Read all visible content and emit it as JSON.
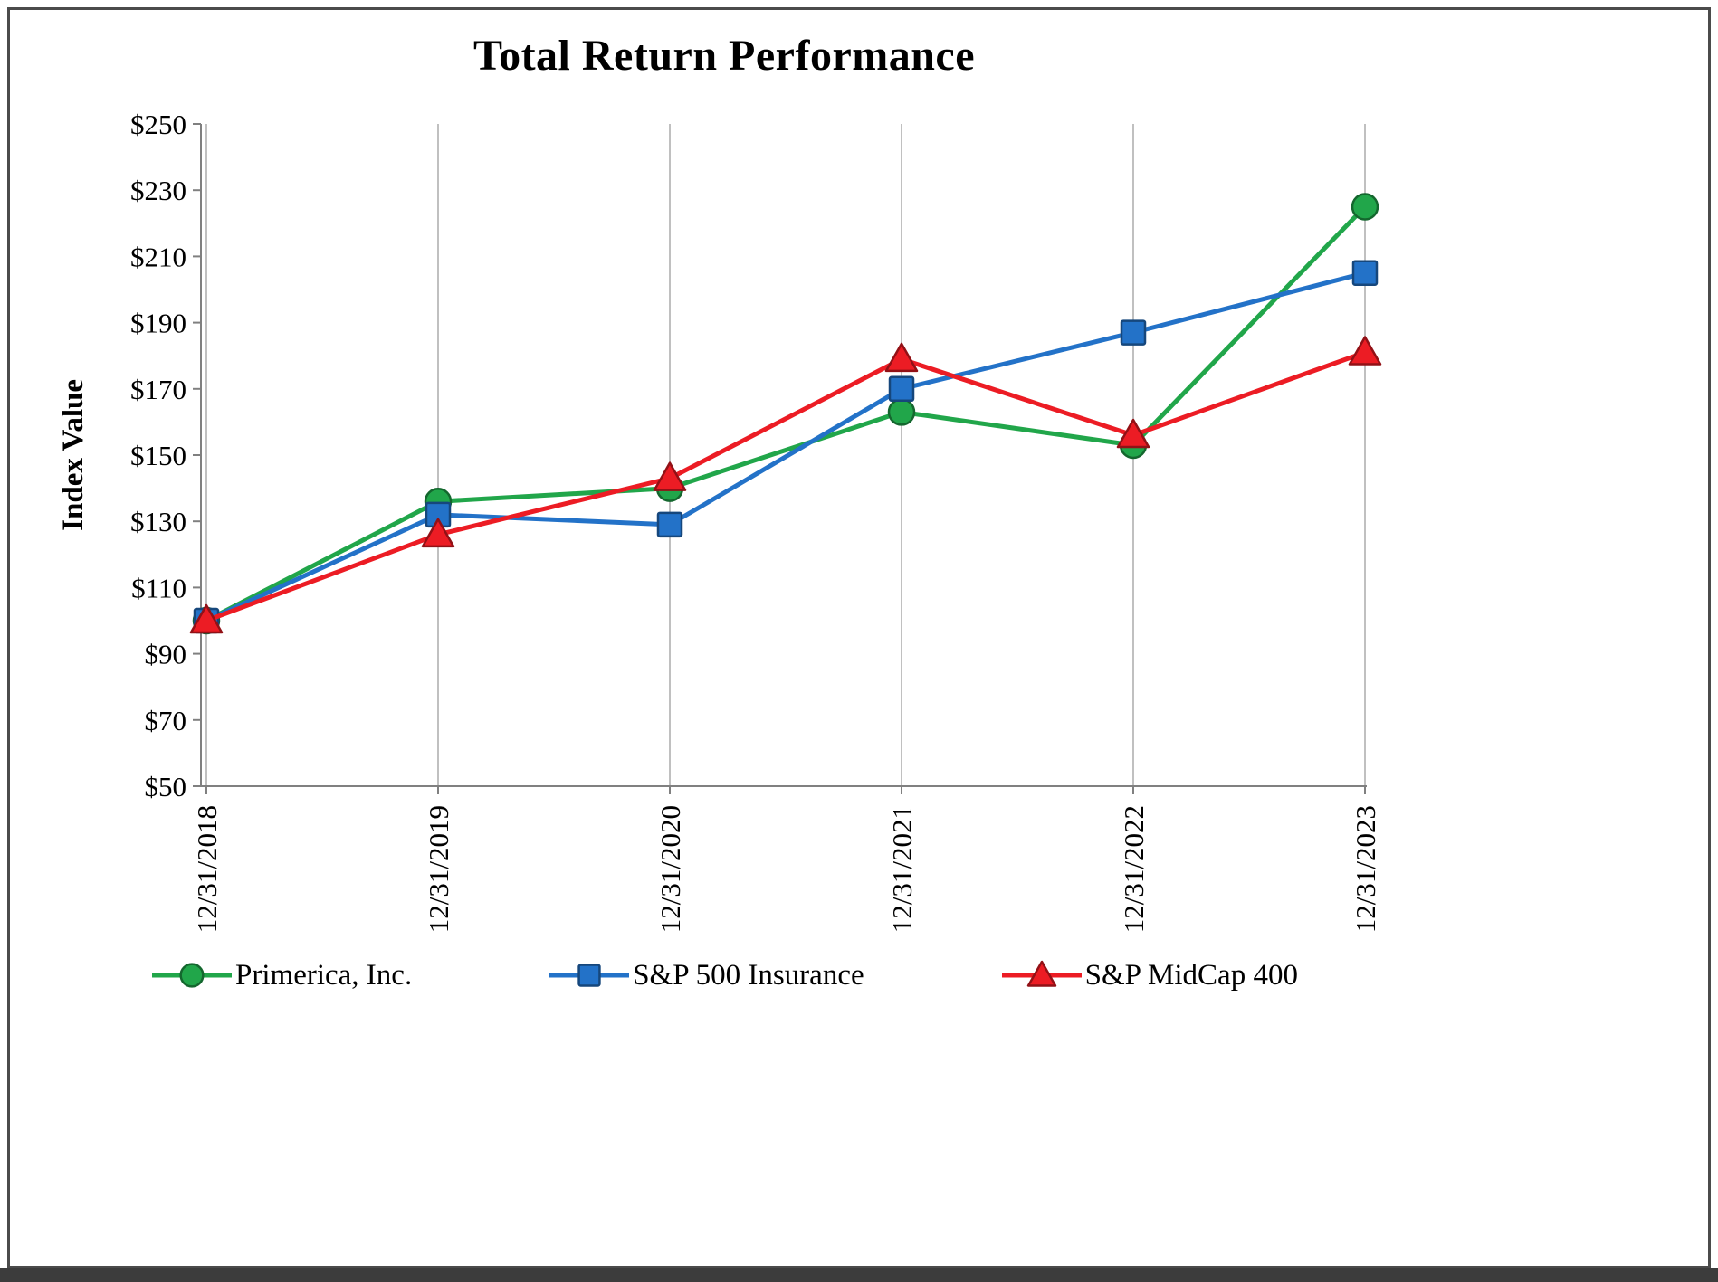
{
  "chart_data": {
    "type": "line",
    "title": "Total Return Performance",
    "xlabel": "",
    "ylabel": "Index Value",
    "categories": [
      "12/31/2018",
      "12/31/2019",
      "12/31/2020",
      "12/31/2021",
      "12/31/2022",
      "12/31/2023"
    ],
    "ylim": [
      50,
      250
    ],
    "ytick_step": 20,
    "ytick_labels": [
      "$50",
      "$70",
      "$90",
      "$110",
      "$130",
      "$150",
      "$170",
      "$190",
      "$210",
      "$230",
      "$250"
    ],
    "grid": "vertical-gridlines-only",
    "legend_position": "bottom",
    "axis_color": "#808080",
    "gridline_color": "#ababab",
    "series": [
      {
        "name": "Primerica, Inc.",
        "marker": "circle",
        "color": "#21A64A",
        "values": [
          100,
          136,
          140,
          163,
          153,
          225
        ]
      },
      {
        "name": "S&P 500 Insurance",
        "marker": "square",
        "color": "#2372C8",
        "values": [
          100,
          132,
          129,
          170,
          187,
          205
        ]
      },
      {
        "name": "S&P MidCap 400",
        "marker": "triangle",
        "color": "#EC1C24",
        "values": [
          100,
          126,
          143,
          179,
          156,
          181
        ]
      }
    ]
  }
}
